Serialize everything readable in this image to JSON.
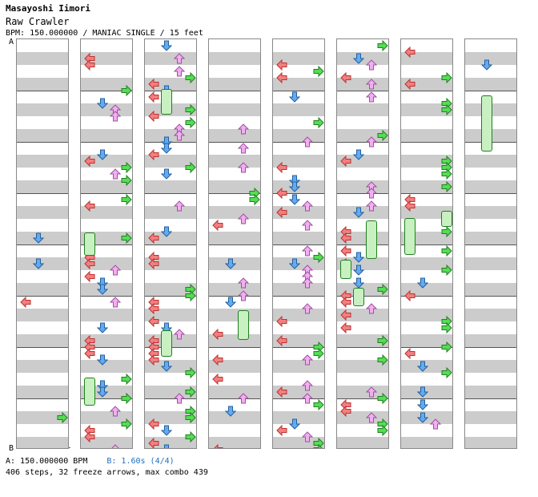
{
  "header": {
    "artist": "Masayoshi Iimori",
    "title": "Raw Crawler",
    "info": "BPM: 150.000000 / MANIAC SINGLE / 15 feet"
  },
  "markers": {
    "start": "A",
    "end": "B"
  },
  "footer": {
    "bpm_a": "A: 150.000000 BPM",
    "bpm_b": "B: 1.60s (4/4)",
    "summary": "406 steps, 32 freeze arrows, max combo 439"
  },
  "colors": {
    "left_red": "#f08080",
    "down_blue": "#66aaee",
    "up_pink": "#f0b0f0",
    "right_green": "#55dd55",
    "outline_red": "#c03030",
    "outline_blue": "#2060a0",
    "outline_pink": "#a050a0",
    "outline_green": "#208020"
  },
  "chart_meta": {
    "columns": 8,
    "arrow_lanes": [
      "left",
      "down",
      "up",
      "right"
    ],
    "icons": [
      "left-arrow-icon",
      "down-arrow-icon",
      "up-arrow-icon",
      "right-arrow-icon",
      "freeze-arrow-icon"
    ]
  }
}
